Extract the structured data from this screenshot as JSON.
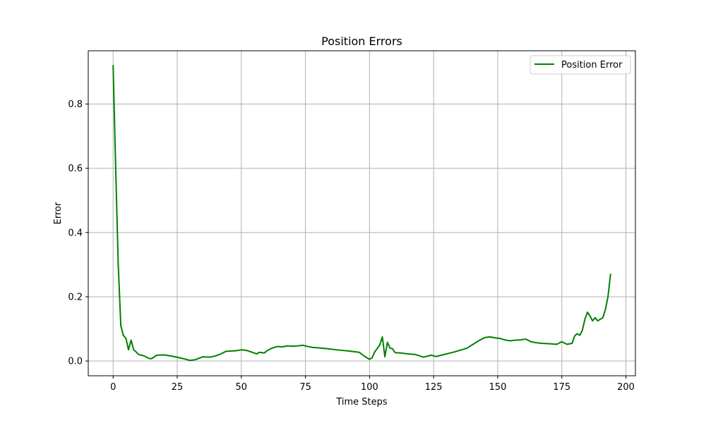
{
  "chart_data": {
    "type": "line",
    "title": "Position Errors",
    "xlabel": "Time Steps",
    "ylabel": "Error",
    "xlim": [
      -9.7,
      203.7
    ],
    "ylim": [
      -0.046,
      0.966
    ],
    "xticks": [
      0,
      25,
      50,
      75,
      100,
      125,
      150,
      175,
      200
    ],
    "xtick_labels": [
      "0",
      "25",
      "50",
      "75",
      "100",
      "125",
      "150",
      "175",
      "200"
    ],
    "yticks": [
      0.0,
      0.2,
      0.4,
      0.6,
      0.8
    ],
    "ytick_labels": [
      "0.0",
      "0.2",
      "0.4",
      "0.6",
      "0.8"
    ],
    "grid": true,
    "legend_position": "top-right",
    "series": [
      {
        "name": "Position Error",
        "color": "#008000",
        "x": [
          0,
          1,
          2,
          3,
          4,
          5,
          6,
          7,
          8,
          9,
          10,
          12,
          14,
          15,
          17,
          20,
          23,
          26,
          28,
          30,
          32,
          35,
          38,
          40,
          42,
          44,
          46,
          48,
          50,
          52,
          54,
          56,
          57,
          59,
          60,
          62,
          64,
          66,
          68,
          70,
          72,
          74,
          76,
          78,
          80,
          84,
          88,
          92,
          96,
          98,
          100,
          101,
          102,
          104,
          105,
          106,
          107,
          108,
          109,
          110,
          112,
          115,
          118,
          121,
          124,
          126,
          128,
          130,
          133,
          136,
          138,
          140,
          143,
          145,
          147,
          149,
          151,
          153,
          155,
          157,
          159,
          161,
          163,
          165,
          167,
          170,
          173,
          175,
          177,
          179,
          180,
          181,
          182,
          183,
          184,
          185,
          186,
          187,
          188,
          189,
          190,
          191,
          192,
          193,
          194
        ],
        "values": [
          0.92,
          0.6,
          0.3,
          0.11,
          0.08,
          0.07,
          0.035,
          0.065,
          0.035,
          0.028,
          0.02,
          0.016,
          0.008,
          0.007,
          0.018,
          0.019,
          0.015,
          0.01,
          0.006,
          0.002,
          0.004,
          0.013,
          0.012,
          0.016,
          0.022,
          0.03,
          0.031,
          0.032,
          0.035,
          0.033,
          0.028,
          0.022,
          0.027,
          0.025,
          0.032,
          0.04,
          0.045,
          0.044,
          0.047,
          0.046,
          0.047,
          0.049,
          0.045,
          0.042,
          0.041,
          0.038,
          0.034,
          0.031,
          0.027,
          0.015,
          0.005,
          0.01,
          0.028,
          0.05,
          0.075,
          0.013,
          0.058,
          0.04,
          0.038,
          0.026,
          0.025,
          0.022,
          0.02,
          0.012,
          0.018,
          0.014,
          0.018,
          0.022,
          0.028,
          0.035,
          0.04,
          0.05,
          0.065,
          0.073,
          0.075,
          0.072,
          0.07,
          0.065,
          0.063,
          0.065,
          0.066,
          0.068,
          0.06,
          0.057,
          0.055,
          0.054,
          0.052,
          0.06,
          0.052,
          0.055,
          0.078,
          0.085,
          0.08,
          0.095,
          0.13,
          0.152,
          0.14,
          0.125,
          0.135,
          0.125,
          0.13,
          0.135,
          0.16,
          0.2,
          0.27
        ]
      }
    ]
  }
}
